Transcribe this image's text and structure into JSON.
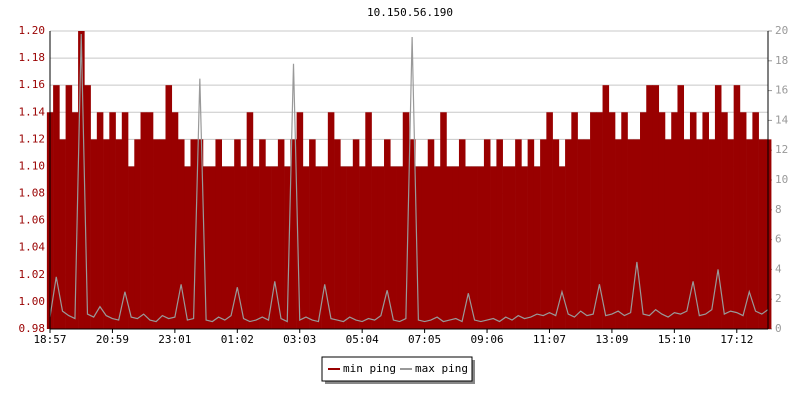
{
  "chart_data": {
    "type": "area",
    "title": "10.150.56.190",
    "grid": true,
    "legend": "bottom",
    "categories": [
      "18:57",
      null,
      null,
      null,
      null,
      null,
      null,
      null,
      null,
      null,
      "20:59",
      null,
      null,
      null,
      null,
      null,
      null,
      null,
      null,
      null,
      "23:01",
      null,
      null,
      null,
      null,
      null,
      null,
      null,
      null,
      null,
      "01:02",
      null,
      null,
      null,
      null,
      null,
      null,
      null,
      null,
      null,
      "03:03",
      null,
      null,
      null,
      null,
      null,
      null,
      null,
      null,
      null,
      "05:04",
      null,
      null,
      null,
      null,
      null,
      null,
      null,
      null,
      null,
      "07:05",
      null,
      null,
      null,
      null,
      null,
      null,
      null,
      null,
      null,
      "09:06",
      null,
      null,
      null,
      null,
      null,
      null,
      null,
      null,
      null,
      "11:07",
      null,
      null,
      null,
      null,
      null,
      null,
      null,
      null,
      null,
      "13:09",
      null,
      null,
      null,
      null,
      null,
      null,
      null,
      null,
      null,
      "15:10",
      null,
      null,
      null,
      null,
      null,
      null,
      null,
      null,
      null,
      "17:12",
      null,
      null,
      null,
      null,
      null
    ],
    "ylim": [
      0.98,
      1.2
    ],
    "yticks": [
      0.98,
      {
        "value": 1,
        "label": "1.00"
      },
      1.02,
      1.04,
      1.06,
      1.08,
      {
        "value": 1.1,
        "label": "1.10"
      },
      1.12,
      1.14,
      1.16,
      1.18,
      {
        "value": 1.2,
        "label": "1.20"
      }
    ],
    "y2lim": [
      0,
      20
    ],
    "y2ticks": [
      0,
      2,
      4,
      6,
      8,
      10,
      12,
      14,
      16,
      18,
      20
    ],
    "series": [
      {
        "name": "min ping",
        "color": "#990000",
        "values": [
          1.14,
          1.16,
          1.12,
          1.16,
          1.14,
          1.2,
          1.16,
          1.12,
          1.14,
          1.12,
          1.14,
          1.12,
          1.14,
          1.1,
          1.12,
          1.14,
          1.14,
          1.12,
          1.12,
          1.16,
          1.14,
          1.12,
          1.1,
          1.12,
          1.12,
          1.1,
          1.1,
          1.12,
          1.1,
          1.1,
          1.12,
          1.1,
          1.14,
          1.1,
          1.12,
          1.1,
          1.1,
          1.12,
          1.1,
          1.12,
          1.14,
          1.1,
          1.12,
          1.1,
          1.1,
          1.14,
          1.12,
          1.1,
          1.1,
          1.12,
          1.1,
          1.14,
          1.1,
          1.1,
          1.12,
          1.1,
          1.1,
          1.14,
          1.12,
          1.1,
          1.1,
          1.12,
          1.1,
          1.14,
          1.1,
          1.1,
          1.12,
          1.1,
          1.1,
          1.1,
          1.12,
          1.1,
          1.12,
          1.1,
          1.1,
          1.12,
          1.1,
          1.12,
          1.1,
          1.12,
          1.14,
          1.12,
          1.1,
          1.12,
          1.14,
          1.12,
          1.12,
          1.14,
          1.14,
          1.16,
          1.14,
          1.12,
          1.14,
          1.12,
          1.12,
          1.14,
          1.16,
          1.16,
          1.14,
          1.12,
          1.14,
          1.16,
          1.12,
          1.14,
          1.12,
          1.14,
          1.12,
          1.16,
          1.14,
          1.12,
          1.16,
          1.14,
          1.12,
          1.14,
          1.12,
          1.12
        ]
      },
      {
        "name": "max ping",
        "color": "#999999",
        "axis": "y2",
        "values": [
          0.8,
          3.5,
          1.2,
          0.9,
          0.7,
          19.8,
          1.0,
          0.8,
          1.5,
          0.9,
          0.7,
          0.6,
          2.5,
          0.8,
          0.7,
          1.0,
          0.6,
          0.5,
          0.9,
          0.7,
          0.8,
          3.0,
          0.6,
          0.7,
          16.8,
          0.6,
          0.5,
          0.8,
          0.6,
          0.9,
          2.8,
          0.7,
          0.5,
          0.6,
          0.8,
          0.6,
          3.2,
          0.7,
          0.5,
          17.8,
          0.6,
          0.8,
          0.6,
          0.5,
          3.0,
          0.7,
          0.6,
          0.5,
          0.8,
          0.6,
          0.5,
          0.7,
          0.6,
          0.9,
          2.6,
          0.6,
          0.5,
          0.7,
          19.6,
          0.6,
          0.5,
          0.6,
          0.8,
          0.5,
          0.6,
          0.7,
          0.5,
          2.4,
          0.6,
          0.5,
          0.6,
          0.7,
          0.5,
          0.8,
          0.6,
          0.9,
          0.7,
          0.8,
          1.0,
          0.9,
          1.1,
          0.9,
          2.5,
          1.0,
          0.8,
          1.2,
          0.9,
          1.0,
          3.0,
          0.9,
          1.0,
          1.2,
          0.9,
          1.1,
          4.5,
          1.0,
          0.9,
          1.3,
          1.0,
          0.8,
          1.1,
          1.0,
          1.2,
          3.2,
          0.9,
          1.0,
          1.3,
          4.0,
          1.0,
          1.2,
          1.1,
          0.9,
          2.5,
          1.2,
          1.0,
          1.3
        ]
      }
    ]
  }
}
